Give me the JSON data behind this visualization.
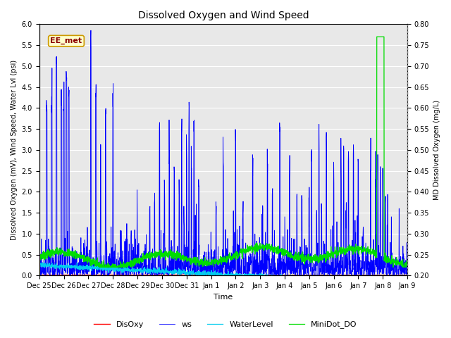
{
  "title": "Dissolved Oxygen and Wind Speed",
  "xlabel": "Time",
  "ylabel_left": "Dissolved Oxygen (mV), Wind Speed, Water Lvl (psi)",
  "ylabel_right": "MD Dissolved Oxygen (mg/L)",
  "ylim_left": [
    0.0,
    6.0
  ],
  "ylim_right": [
    0.2,
    0.8
  ],
  "annotation": "EE_met",
  "fig_bg": "#ffffff",
  "plot_bg": "#e8e8e8",
  "grid_color": "#ffffff",
  "color_disoxy": "#ff0000",
  "color_ws": "#0000ff",
  "color_wl": "#00ccee",
  "color_md": "#00dd00",
  "legend_items": [
    "DisOxy",
    "ws",
    "WaterLevel",
    "MiniDot_DO"
  ],
  "x_ticks": [
    "Dec 25",
    "Dec 26",
    "Dec 27",
    "Dec 28",
    "Dec 29",
    "Dec 30",
    "Dec 31",
    "Jan 1",
    "Jan 2",
    "Jan 3",
    "Jan 4",
    "Jan 5",
    "Jan 6",
    "Jan 7",
    "Jan 8",
    "Jan 9"
  ],
  "x_tick_pos": [
    0,
    1,
    2,
    3,
    4,
    5,
    6,
    7,
    8,
    9,
    10,
    11,
    12,
    13,
    14,
    15
  ],
  "xlim": [
    0,
    15
  ],
  "annotation_facecolor": "#ffffcc",
  "annotation_edgecolor": "#cc9900",
  "title_fontsize": 10,
  "axis_fontsize": 7,
  "legend_fontsize": 8
}
